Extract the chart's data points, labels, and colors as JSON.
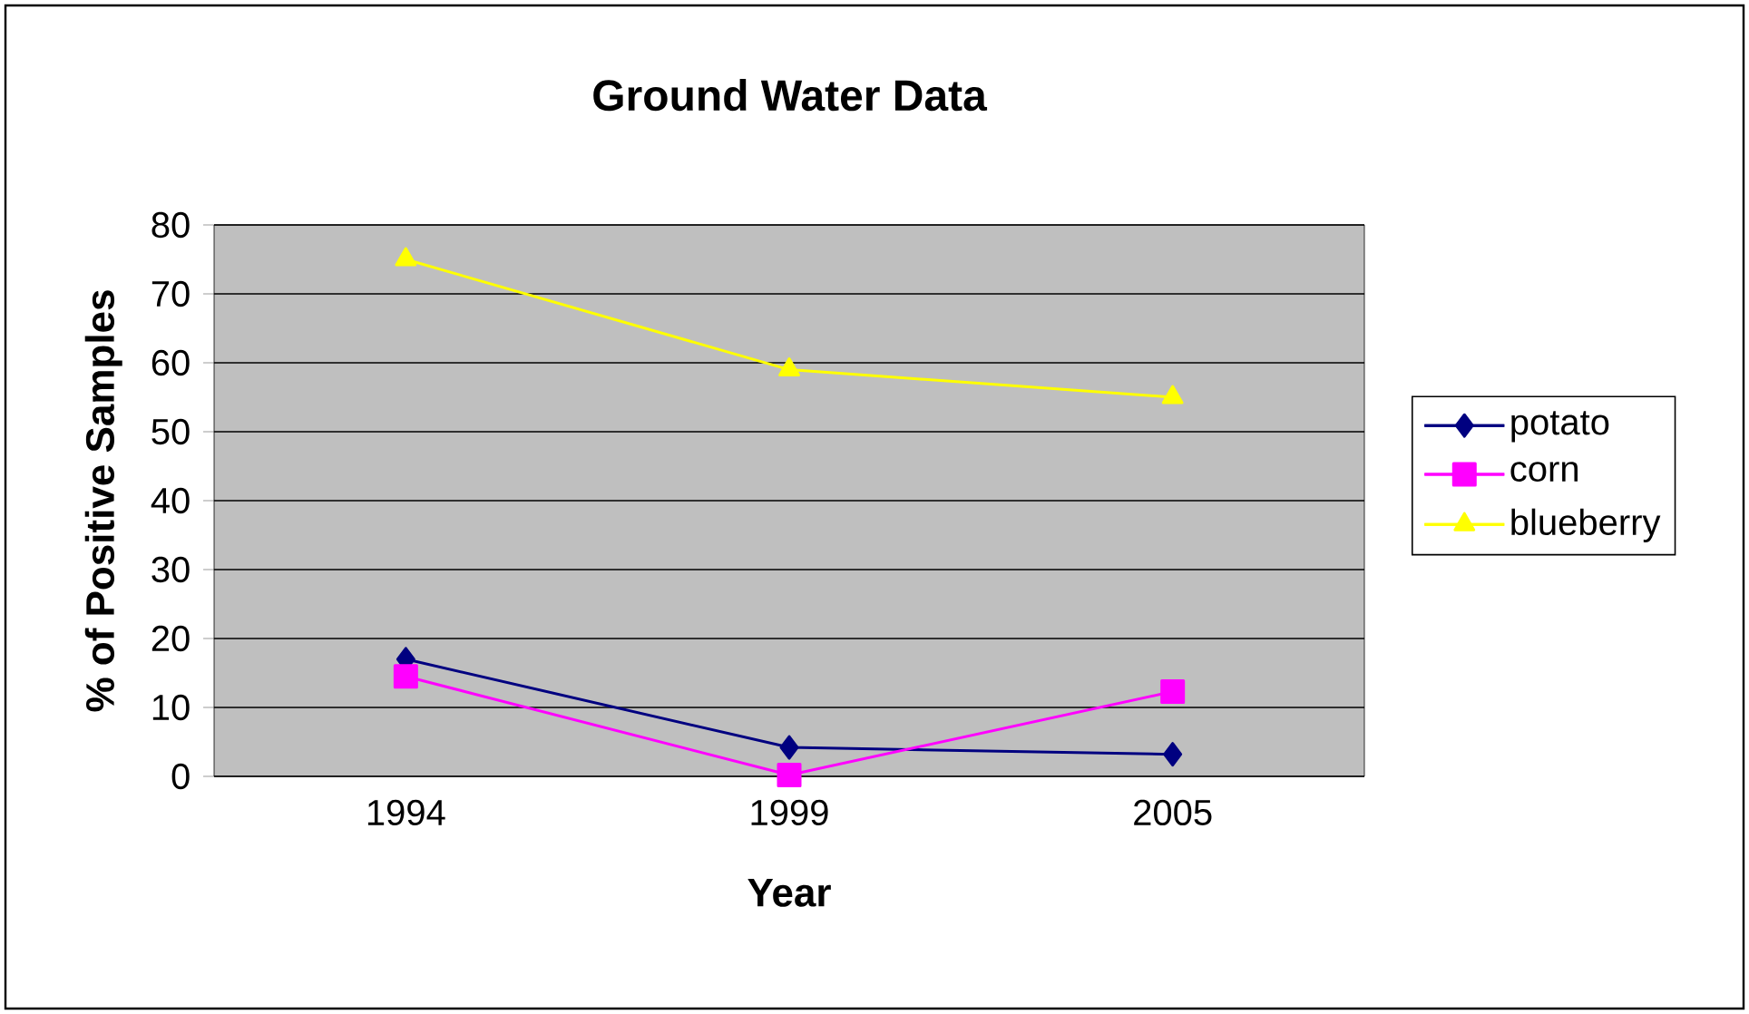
{
  "chart_data": {
    "type": "line",
    "title": "Ground Water Data",
    "xlabel": "Year",
    "ylabel": "% of Positive Samples",
    "categories": [
      "1994",
      "1999",
      "2005"
    ],
    "series": [
      {
        "name": "potato",
        "color": "#000080",
        "marker": "diamond",
        "values": [
          17,
          4.2,
          3.2
        ]
      },
      {
        "name": "corn",
        "color": "#ff00ff",
        "marker": "square",
        "values": [
          14.5,
          0.2,
          12.3
        ]
      },
      {
        "name": "blueberry",
        "color": "#ffff00",
        "marker": "triangle",
        "values": [
          75,
          59,
          55
        ]
      }
    ],
    "ylim": [
      0,
      80
    ],
    "yticks": [
      0,
      10,
      20,
      30,
      40,
      50,
      60,
      70,
      80
    ],
    "grid": "y",
    "legend": "right",
    "line_style": "solid"
  }
}
